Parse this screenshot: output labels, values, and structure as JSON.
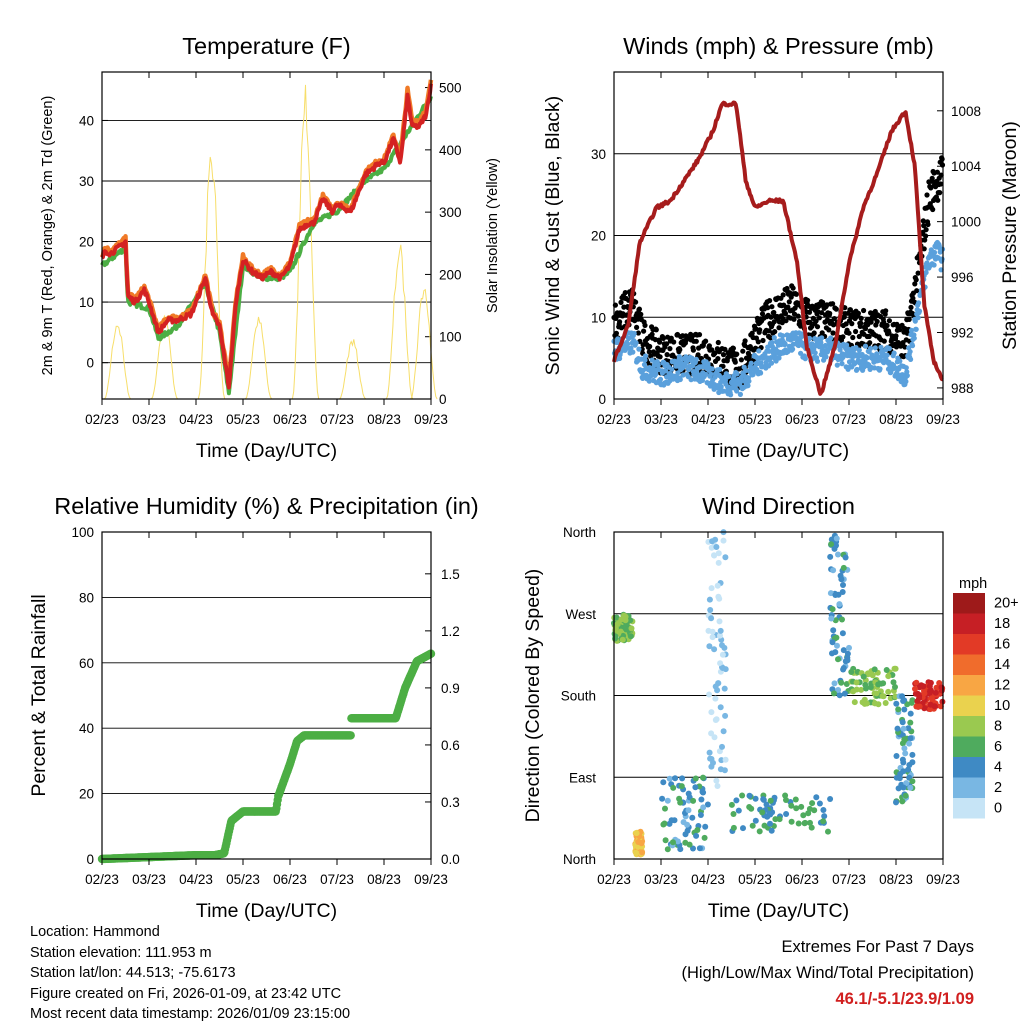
{
  "colors": {
    "temp2m": "#d42222",
    "temp9m": "#f07a27",
    "dewpoint": "#4cae44",
    "solar": "#f7de6a",
    "wind": "#5aa0dc",
    "gust": "#000000",
    "pressure": "#a61c1c",
    "rh": "#4cae44",
    "accent": "#d11f1f"
  },
  "info": {
    "location": "Location: Hammond",
    "elevation": "Station elevation: 111.953 m",
    "latlon": "Station lat/lon: 44.513; -75.6173",
    "created": "Figure created on Fri, 2026-01-09, at 23:42 UTC",
    "recent": "Most recent data timestamp: 2026/01/09 23:15:00"
  },
  "extremes": {
    "title": "Extremes For Past 7 Days",
    "subtitle": "(High/Low/Max Wind/Total Precipitation)",
    "values": "46.1/-5.1/23.9/1.09"
  },
  "chart_data": [
    {
      "id": "temperature",
      "type": "line",
      "title": "Temperature (F)",
      "xlabel": "Time (Day/UTC)",
      "ylabel": "2m & 9m T (Red, Orange) & 2m Td (Green)",
      "ylabel_right": "Solar Insolation (Yellow)",
      "x_ticks": [
        "02/23",
        "03/23",
        "04/23",
        "05/23",
        "06/23",
        "07/23",
        "08/23",
        "09/23"
      ],
      "ylim": [
        -6,
        48
      ],
      "y_ticks": [
        0,
        10,
        20,
        30,
        40
      ],
      "y2lim": [
        0,
        525
      ],
      "y2_ticks": [
        0,
        100,
        200,
        300,
        400,
        500
      ],
      "series": [
        {
          "name": "2m T",
          "x": [
            0,
            0.06,
            0.18,
            0.35,
            0.5,
            0.55,
            0.7,
            0.9,
            1.0,
            1.2,
            1.4,
            1.6,
            1.9,
            2.2,
            2.35,
            2.5,
            2.7,
            2.85,
            3.0,
            3.1,
            3.2,
            3.4,
            3.6,
            3.8,
            4.0,
            4.2,
            4.4,
            4.5,
            4.7,
            4.9,
            5.0,
            5.3,
            5.6,
            5.9,
            6.0,
            6.1,
            6.2,
            6.35,
            6.5,
            6.6,
            6.75,
            6.9,
            7.0
          ],
          "y": [
            17,
            18.5,
            18,
            19,
            20,
            11,
            10,
            12,
            10,
            5,
            7,
            7,
            8,
            14,
            8,
            6,
            -4,
            10,
            17,
            16,
            15,
            14,
            15,
            14,
            16,
            22,
            23,
            23,
            27,
            25,
            26,
            25,
            31,
            33,
            33,
            35,
            37,
            33,
            44,
            39,
            39,
            41,
            46
          ]
        },
        {
          "name": "9m T",
          "x": [
            0,
            0.06,
            0.18,
            0.35,
            0.5,
            0.55,
            0.7,
            0.9,
            1.0,
            1.2,
            1.4,
            1.6,
            1.9,
            2.2,
            2.35,
            2.5,
            2.7,
            2.85,
            3.0,
            3.1,
            3.2,
            3.4,
            3.6,
            3.8,
            4.0,
            4.2,
            4.4,
            4.5,
            4.7,
            4.9,
            5.0,
            5.3,
            5.6,
            5.9,
            6.0,
            6.1,
            6.2,
            6.35,
            6.5,
            6.6,
            6.75,
            6.9,
            7.0
          ],
          "y": [
            17.5,
            19,
            18.5,
            19.5,
            20.5,
            11.5,
            10.5,
            12.5,
            10.5,
            5.5,
            7.5,
            7.5,
            8.5,
            14.5,
            8.5,
            6.5,
            -3,
            10.5,
            17.5,
            16.5,
            15.5,
            14.5,
            15.5,
            14.5,
            16.5,
            22.5,
            23.5,
            23.5,
            27.5,
            25.5,
            26.5,
            25.5,
            31.5,
            33.5,
            33.5,
            35.5,
            37.5,
            34,
            45,
            40,
            40,
            42,
            46.5
          ]
        },
        {
          "name": "2m Td",
          "x": [
            0,
            0.5,
            0.55,
            1.0,
            1.2,
            1.6,
            2.2,
            2.5,
            2.7,
            3.0,
            3.4,
            3.8,
            4.0,
            4.5,
            5.0,
            5.6,
            6.0,
            6.5,
            7.0
          ],
          "y": [
            16,
            19,
            10,
            9,
            4,
            6,
            13,
            5,
            -5,
            16,
            14,
            14,
            15,
            23,
            25,
            30,
            32,
            38,
            44
          ]
        },
        {
          "name": "Solar",
          "axis": "right",
          "peaks_day": [
            0.33,
            1.33,
            2.33,
            3.33,
            4.33,
            5.33,
            6.33,
            6.85
          ],
          "peaks_value": [
            130,
            140,
            420,
            140,
            515,
            100,
            255,
            190
          ]
        }
      ]
    },
    {
      "id": "winds",
      "type": "line",
      "title": "Winds (mph) & Pressure (mb)",
      "xlabel": "Time (Day/UTC)",
      "ylabel": "Sonic Wind & Gust (Blue, Black)",
      "ylabel_right": "Station Pressure (Maroon)",
      "x_ticks": [
        "02/23",
        "03/23",
        "04/23",
        "05/23",
        "06/23",
        "07/23",
        "08/23",
        "09/23"
      ],
      "ylim": [
        0,
        40
      ],
      "y_ticks": [
        0,
        10,
        20,
        30
      ],
      "y2lim": [
        987.2,
        1010.8
      ],
      "y2_ticks": [
        988,
        992,
        996,
        1000,
        1004,
        1008
      ],
      "series": [
        {
          "name": "Sonic Wind",
          "x": [
            0,
            0.4,
            0.6,
            1.0,
            1.5,
            2.0,
            2.3,
            2.7,
            3.0,
            3.4,
            3.8,
            4.2,
            4.6,
            5.0,
            5.4,
            5.8,
            6.2,
            6.5,
            6.7,
            6.85,
            7.0
          ],
          "y": [
            6,
            7,
            4,
            3,
            4,
            3,
            2,
            2,
            4,
            6,
            7,
            6,
            6,
            5,
            5,
            5,
            3,
            12,
            17,
            18,
            17
          ]
        },
        {
          "name": "Gust",
          "x": [
            0,
            0.4,
            0.6,
            1.0,
            1.5,
            2.0,
            2.3,
            2.7,
            3.0,
            3.4,
            3.8,
            4.2,
            4.6,
            5.0,
            5.4,
            5.8,
            6.2,
            6.5,
            6.7,
            6.85,
            7.0
          ],
          "y": [
            9,
            11,
            7,
            5,
            5,
            5,
            4,
            3,
            7,
            10,
            11,
            9,
            9,
            8,
            8,
            8,
            6,
            16,
            24,
            26,
            27
          ]
        },
        {
          "name": "Pressure",
          "axis": "right",
          "x": [
            0,
            0.3,
            0.55,
            0.9,
            1.2,
            1.5,
            1.8,
            2.1,
            2.3,
            2.6,
            2.8,
            3.0,
            3.3,
            3.6,
            3.9,
            4.1,
            4.4,
            4.7,
            5.0,
            5.3,
            5.6,
            5.9,
            6.2,
            6.4,
            6.6,
            6.8,
            7.0
          ],
          "y": [
            990,
            992.5,
            998.5,
            1001,
            1001.5,
            1003,
            1004.5,
            1006.5,
            1008.5,
            1008.5,
            1003,
            1001,
            1001.5,
            1001.5,
            997,
            991,
            987.5,
            991,
            997,
            1001,
            1003.5,
            1006.5,
            1008,
            1004,
            994,
            990,
            988.5
          ]
        }
      ]
    },
    {
      "id": "humidity",
      "type": "line",
      "title": "Relative Humidity (%) & Precipitation (in)",
      "xlabel": "Time (Day/UTC)",
      "ylabel": "Percent & Total Rainfall",
      "x_ticks": [
        "02/23",
        "03/23",
        "04/23",
        "05/23",
        "06/23",
        "07/23",
        "08/23",
        "09/23"
      ],
      "ylim": [
        0,
        100
      ],
      "y_ticks": [
        0,
        20,
        40,
        60,
        80,
        100
      ],
      "y2lim": [
        0,
        1.72
      ],
      "y2_ticks": [
        "0.0",
        "0.3",
        "0.6",
        "0.9",
        "1.2",
        "1.5"
      ],
      "series": [
        {
          "name": "Total Precipitation",
          "axis": "right",
          "x": [
            0,
            1.0,
            2.0,
            2.4,
            2.6,
            2.75,
            3.0,
            3.7,
            3.75,
            4.0,
            4.15,
            4.3,
            4.6,
            5.3,
            5.3,
            5.5,
            6.0,
            6.25,
            6.45,
            6.7,
            7.0
          ],
          "y": [
            0,
            0.01,
            0.02,
            0.02,
            0.03,
            0.2,
            0.25,
            0.25,
            0.33,
            0.5,
            0.62,
            0.65,
            0.65,
            0.65,
            0.74,
            0.74,
            0.74,
            0.74,
            0.9,
            1.04,
            1.08
          ]
        }
      ]
    },
    {
      "id": "direction",
      "type": "scatter",
      "title": "Wind Direction",
      "xlabel": "Time (Day/UTC)",
      "ylabel": "Direction (Colored By Speed)",
      "x_ticks": [
        "02/23",
        "03/23",
        "04/23",
        "05/23",
        "06/23",
        "07/23",
        "08/23",
        "09/23"
      ],
      "y_ticks": [
        "North",
        "East",
        "South",
        "West",
        "North"
      ],
      "ylim": [
        0,
        360
      ],
      "legend_title": "mph",
      "legend_labels": [
        "20+",
        "18",
        "16",
        "14",
        "12",
        "10",
        "8",
        "6",
        "4",
        "2",
        "0"
      ],
      "legend_colors": [
        "#9e1a1a",
        "#c61f25",
        "#e23a26",
        "#f06c2c",
        "#f8a644",
        "#ead24e",
        "#9ac950",
        "#4fab5e",
        "#3f8ac4",
        "#79b7e3",
        "#c6e4f6"
      ],
      "clusters": [
        {
          "x": [
            0,
            0.4
          ],
          "dir": [
            240,
            270
          ],
          "speed": 7
        },
        {
          "x": [
            0.45,
            0.6
          ],
          "dir": [
            5,
            30
          ],
          "speed": 11
        },
        {
          "x": [
            1.0,
            2.0
          ],
          "dir": [
            10,
            90
          ],
          "speed": 4
        },
        {
          "x": [
            2.0,
            2.4
          ],
          "dir": [
            80,
            360
          ],
          "speed": 1
        },
        {
          "x": [
            2.5,
            4.6
          ],
          "dir": [
            30,
            70
          ],
          "speed": 5
        },
        {
          "x": [
            4.6,
            5.0
          ],
          "dir": [
            180,
            360
          ],
          "speed": 4
        },
        {
          "x": [
            5.0,
            6.0
          ],
          "dir": [
            170,
            210
          ],
          "speed": 7
        },
        {
          "x": [
            6.0,
            6.35
          ],
          "dir": [
            60,
            180
          ],
          "speed": 4
        },
        {
          "x": [
            6.4,
            7.0
          ],
          "dir": [
            165,
            195
          ],
          "speed": 17
        }
      ]
    }
  ]
}
